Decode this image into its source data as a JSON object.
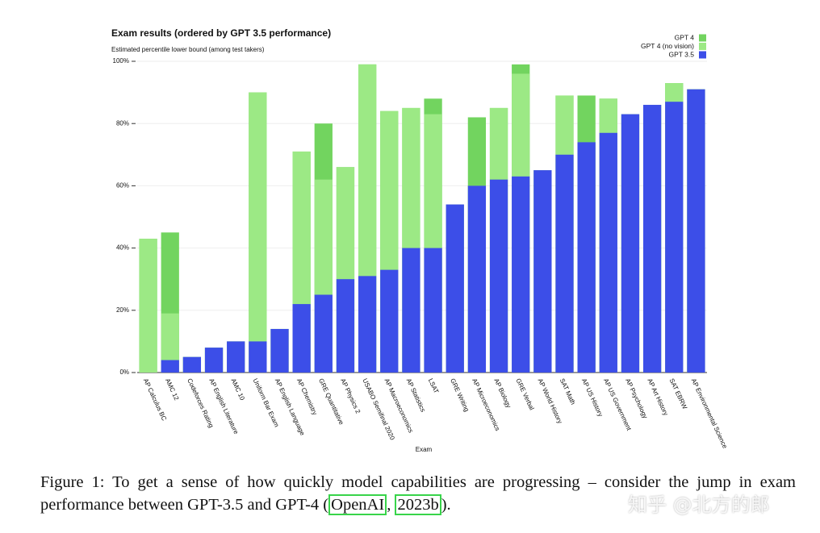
{
  "chart_data": {
    "type": "bar",
    "title": "Exam results (ordered by GPT 3.5 performance)",
    "subtitle": "Estimated percentile lower bound (among test takers)",
    "xlabel": "Exam",
    "categories": [
      "AP Calculus BC",
      "AMC 12",
      "Codeforces Rating",
      "AP English Literature",
      "AMC 10",
      "Uniform Bar Exam",
      "AP English Language",
      "AP Chemistry",
      "GRE Quantitative",
      "AP Physics 2",
      "USABO Semifinal 2020",
      "AP Macroeconomics",
      "AP Statistics",
      "LSAT",
      "GRE Writing",
      "AP Microeconomics",
      "AP Biology",
      "GRE Verbal",
      "AP World History",
      "SAT Math",
      "AP US History",
      "AP US Government",
      "AP Psychology",
      "AP Art History",
      "SAT EBRW",
      "AP Environmental Science"
    ],
    "series": [
      {
        "name": "GPT 4",
        "color": "#72d45f",
        "values": [
          43,
          45,
          5,
          8,
          10,
          90,
          14,
          71,
          80,
          66,
          99,
          84,
          85,
          88,
          54,
          82,
          85,
          99,
          65,
          89,
          89,
          88,
          83,
          86,
          93,
          91
        ]
      },
      {
        "name": "GPT 4 (no vision)",
        "color": "#9ce985",
        "values": [
          43,
          19,
          5,
          8,
          10,
          90,
          14,
          71,
          62,
          66,
          99,
          84,
          85,
          83,
          54,
          60,
          85,
          96,
          65,
          89,
          74,
          88,
          83,
          86,
          93,
          91
        ]
      },
      {
        "name": "GPT 3.5",
        "color": "#3c4ee8",
        "values": [
          0,
          4,
          5,
          8,
          10,
          10,
          14,
          22,
          25,
          30,
          31,
          33,
          40,
          40,
          54,
          60,
          62,
          63,
          65,
          70,
          74,
          77,
          83,
          86,
          87,
          91
        ]
      }
    ],
    "ylim": [
      0,
      100
    ],
    "yticks": [
      {
        "value": 0,
        "label": "0%"
      },
      {
        "value": 20,
        "label": "20%"
      },
      {
        "value": 40,
        "label": "40%"
      },
      {
        "value": 60,
        "label": "60%"
      },
      {
        "value": 80,
        "label": "80%"
      },
      {
        "value": 100,
        "label": "100%"
      }
    ],
    "grid": true,
    "legend": "upper right"
  },
  "caption": {
    "before": "Figure 1: To get a sense of how quickly model capabilities are progressing – consider the jump in exam performance between GPT-3.5 and GPT-4 (",
    "cite_author": "OpenAI",
    "between": ", ",
    "cite_year": "2023b",
    "after": ")."
  },
  "watermark": "知乎 @北方的郎"
}
